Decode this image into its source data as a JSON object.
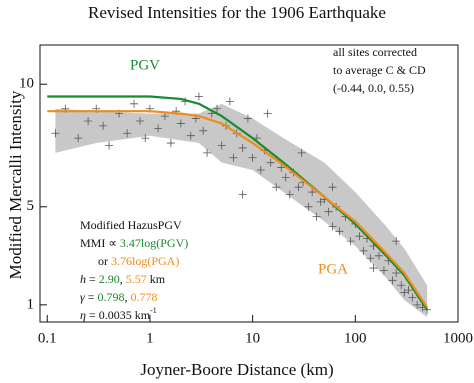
{
  "chart_data": {
    "type": "scatter",
    "title": "Revised Intensities for the 1906 Earthquake",
    "x_label": "Joyner-Boore Distance (km)",
    "y_label": "Modified Mercalli Intensity",
    "x_scale": "log",
    "xlim": [
      0.085,
      1000
    ],
    "ylim": [
      0.3,
      11.6
    ],
    "xticks": [
      0.1,
      1,
      10,
      100,
      1000
    ],
    "yticks": [
      1,
      5,
      10
    ],
    "points": {
      "color": "#555555",
      "x": [
        0.12,
        0.15,
        0.2,
        0.25,
        0.3,
        0.35,
        0.4,
        0.5,
        0.6,
        0.7,
        0.8,
        0.9,
        1,
        1.2,
        1.4,
        1.6,
        1.8,
        2,
        2.2,
        2.5,
        2.8,
        3,
        3.3,
        3.6,
        4,
        4.5,
        5,
        5.5,
        6,
        6.5,
        7,
        8,
        9,
        10,
        11,
        12,
        13,
        15,
        17,
        19,
        21,
        23,
        25,
        28,
        31,
        35,
        38,
        42,
        46,
        50,
        55,
        60,
        65,
        70,
        80,
        90,
        100,
        110,
        120,
        130,
        140,
        150,
        170,
        190,
        210,
        230,
        250,
        280,
        300,
        330,
        360,
        400,
        450,
        500,
        8,
        14,
        30,
        60,
        150,
        250
      ],
      "values": [
        8,
        9,
        7.8,
        8.5,
        9,
        8.3,
        7.5,
        8.8,
        8,
        9.2,
        8.5,
        7.8,
        9,
        8.2,
        8.7,
        7.6,
        8.9,
        8.4,
        9.3,
        7.9,
        8.6,
        9.5,
        8.1,
        7.2,
        8.8,
        9,
        7.5,
        8.3,
        9.3,
        7,
        8,
        7.4,
        8.6,
        7,
        7.8,
        6.5,
        7.3,
        6.8,
        5.8,
        6.6,
        6.2,
        5.5,
        6.4,
        5.8,
        6,
        5,
        5.6,
        4.6,
        5.2,
        5.3,
        4.8,
        4.2,
        5,
        4,
        4.6,
        3.6,
        4.3,
        3.8,
        3.2,
        3.7,
        2.9,
        3.4,
        3,
        2.4,
        2.8,
        2,
        2.3,
        1.8,
        1.5,
        1.6,
        1.3,
        1,
        0.9,
        0.8,
        5.5,
        8.8,
        7.2,
        5.8,
        2.5,
        3.6
      ]
    },
    "band": {
      "color": "#c8c8c8",
      "x": [
        0.12,
        0.3,
        1,
        3,
        5,
        10,
        20,
        50,
        100,
        200,
        300,
        500
      ],
      "lower": [
        7.2,
        7.6,
        7.9,
        7.6,
        6.8,
        6.5,
        5.6,
        4.4,
        3.4,
        2.1,
        1.2,
        0.5
      ],
      "upper": [
        9.0,
        8.9,
        8.8,
        8.8,
        9.2,
        8.6,
        7.8,
        6.8,
        5.6,
        4.2,
        3.3,
        1.8
      ]
    },
    "series": [
      {
        "name": "PGV",
        "color": "#1a8a2e",
        "x": [
          0.1,
          0.3,
          1,
          2,
          3,
          5,
          10,
          20,
          50,
          100,
          200,
          300,
          500
        ],
        "values": [
          9.5,
          9.5,
          9.5,
          9.4,
          9.2,
          8.7,
          7.8,
          6.8,
          5.4,
          4.3,
          3.0,
          2.2,
          0.8
        ]
      },
      {
        "name": "PGA",
        "color": "#f08c1c",
        "x": [
          0.1,
          0.3,
          1,
          2,
          3,
          5,
          10,
          20,
          50,
          100,
          200,
          300,
          500
        ],
        "values": [
          8.9,
          8.9,
          8.9,
          8.8,
          8.7,
          8.4,
          7.6,
          6.7,
          5.4,
          4.4,
          3.1,
          2.3,
          0.9
        ]
      }
    ],
    "note": [
      "all sites corrected",
      "to average C & CD",
      "(-0.44, 0.0, 0.55)"
    ],
    "legend_notes": [
      [
        {
          "text": "Modified HazusPGV"
        }
      ],
      [
        {
          "text": "MMI ∝ "
        },
        {
          "text": "3.47log(PGV)",
          "color": "#1a8a2e"
        }
      ],
      [
        {
          "text": "      or "
        },
        {
          "text": "3.76log(PGA)",
          "color": "#f08c1c"
        }
      ],
      [
        {
          "text": "h",
          "italic": true
        },
        {
          "text": " = "
        },
        {
          "text": "2.90",
          "color": "#1a8a2e"
        },
        {
          "text": ", "
        },
        {
          "text": "5.57",
          "color": "#f08c1c"
        },
        {
          "text": " km"
        }
      ],
      [
        {
          "text": "γ",
          "italic": true
        },
        {
          "text": " = "
        },
        {
          "text": "0.798",
          "color": "#1a8a2e"
        },
        {
          "text": ", "
        },
        {
          "text": "0.778",
          "color": "#f08c1c"
        }
      ],
      [
        {
          "text": "η",
          "italic": true
        },
        {
          "text": " = 0.0035 km"
        },
        {
          "text": "-1",
          "super": true
        }
      ]
    ]
  }
}
